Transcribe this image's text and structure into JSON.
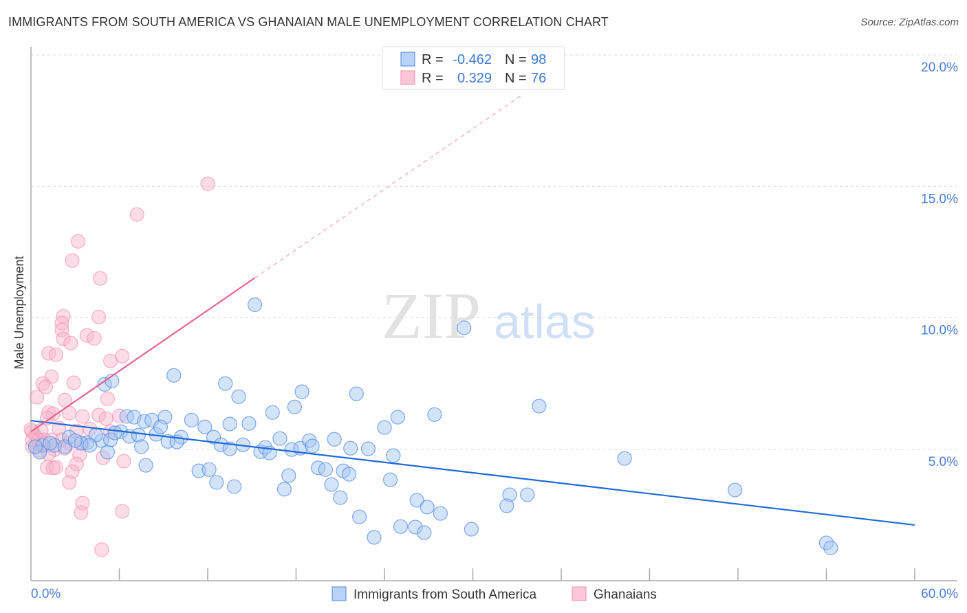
{
  "title": "IMMIGRANTS FROM SOUTH AMERICA VS GHANAIAN MALE UNEMPLOYMENT CORRELATION CHART",
  "source": "Source: ZipAtlas.com",
  "watermark": "ZIPatlas",
  "chart_data": {
    "type": "scatter",
    "title": "IMMIGRANTS FROM SOUTH AMERICA VS GHANAIAN MALE UNEMPLOYMENT CORRELATION CHART",
    "xlabel": "",
    "ylabel": "Male Unemployment",
    "xlim": [
      0,
      60
    ],
    "ylim": [
      0,
      20
    ],
    "x_tick_labels": [
      "0.0%",
      "60.0%"
    ],
    "y_ticks": [
      5,
      10,
      15,
      20
    ],
    "y_tick_labels": [
      "5.0%",
      "10.0%",
      "15.0%",
      "20.0%"
    ],
    "grid": true,
    "legend_position": "bottom",
    "stats": [
      {
        "r_label": "R =",
        "r": "-0.462",
        "n_label": "N =",
        "n": "98"
      },
      {
        "r_label": "R =",
        "r": "0.329",
        "n_label": "N =",
        "n": "76"
      }
    ],
    "series": [
      {
        "name": "Immigrants from South America",
        "color": "#4a86e8",
        "line_color": "#1f6ad8",
        "trend": [
          [
            0,
            6.09
          ],
          [
            60,
            2.12
          ]
        ],
        "points": [
          [
            15.2,
            10.5
          ],
          [
            29.4,
            9.62
          ],
          [
            9.7,
            7.81
          ],
          [
            5.0,
            7.47
          ],
          [
            5.5,
            7.6
          ],
          [
            13.2,
            7.5
          ],
          [
            14.1,
            7.0
          ],
          [
            18.4,
            7.19
          ],
          [
            22.1,
            7.11
          ],
          [
            34.5,
            6.64
          ],
          [
            16.4,
            6.4
          ],
          [
            17.9,
            6.61
          ],
          [
            24.9,
            6.22
          ],
          [
            27.4,
            6.32
          ],
          [
            6.5,
            6.25
          ],
          [
            7.0,
            6.22
          ],
          [
            7.7,
            6.06
          ],
          [
            8.2,
            6.11
          ],
          [
            9.1,
            6.22
          ],
          [
            10.9,
            6.11
          ],
          [
            11.8,
            5.85
          ],
          [
            13.5,
            5.96
          ],
          [
            14.8,
            5.98
          ],
          [
            24.0,
            5.83
          ],
          [
            6.1,
            5.67
          ],
          [
            6.7,
            5.49
          ],
          [
            7.3,
            5.54
          ],
          [
            8.5,
            5.57
          ],
          [
            8.8,
            5.85
          ],
          [
            10.2,
            5.46
          ],
          [
            9.3,
            5.3
          ],
          [
            9.9,
            5.28
          ],
          [
            12.4,
            5.46
          ],
          [
            12.9,
            5.17
          ],
          [
            13.5,
            5.02
          ],
          [
            14.4,
            5.17
          ],
          [
            15.6,
            4.91
          ],
          [
            15.9,
            5.07
          ],
          [
            16.2,
            4.86
          ],
          [
            16.9,
            5.41
          ],
          [
            17.7,
            4.99
          ],
          [
            18.3,
            5.04
          ],
          [
            18.9,
            5.33
          ],
          [
            19.1,
            5.12
          ],
          [
            20.6,
            5.38
          ],
          [
            21.7,
            5.04
          ],
          [
            22.9,
            5.02
          ],
          [
            24.6,
            4.76
          ],
          [
            40.3,
            4.65
          ],
          [
            4.8,
            5.33
          ],
          [
            5.2,
            4.89
          ],
          [
            3.8,
            5.25
          ],
          [
            3.4,
            5.23
          ],
          [
            2.6,
            5.46
          ],
          [
            1.6,
            5.15
          ],
          [
            0.8,
            5.15
          ],
          [
            0.6,
            4.89
          ],
          [
            7.8,
            4.39
          ],
          [
            11.4,
            4.18
          ],
          [
            12.1,
            4.23
          ],
          [
            17.5,
            4.0
          ],
          [
            19.5,
            4.29
          ],
          [
            20.0,
            4.23
          ],
          [
            21.2,
            4.18
          ],
          [
            21.6,
            4.05
          ],
          [
            24.4,
            3.84
          ],
          [
            20.4,
            3.66
          ],
          [
            12.6,
            3.74
          ],
          [
            13.8,
            3.58
          ],
          [
            17.2,
            3.48
          ],
          [
            21.0,
            3.16
          ],
          [
            26.2,
            3.06
          ],
          [
            26.9,
            2.8
          ],
          [
            27.8,
            2.56
          ],
          [
            32.5,
            3.27
          ],
          [
            33.7,
            3.27
          ],
          [
            32.3,
            2.85
          ],
          [
            47.8,
            3.45
          ],
          [
            22.3,
            2.43
          ],
          [
            25.1,
            2.06
          ],
          [
            26.1,
            2.04
          ],
          [
            26.7,
            1.83
          ],
          [
            29.9,
            1.96
          ],
          [
            23.3,
            1.65
          ],
          [
            54.0,
            1.44
          ],
          [
            54.3,
            1.25
          ],
          [
            4.4,
            5.54
          ],
          [
            5.4,
            5.36
          ],
          [
            2.3,
            5.1
          ],
          [
            1.3,
            5.23
          ],
          [
            0.3,
            5.1
          ],
          [
            5.7,
            5.62
          ],
          [
            3.0,
            5.33
          ],
          [
            4.0,
            5.15
          ],
          [
            7.5,
            5.1
          ]
        ]
      },
      {
        "name": "Ghanaians",
        "color": "#f48fb1",
        "line_color": "#e8618f",
        "trend": [
          [
            0,
            5.67
          ],
          [
            15.2,
            11.52
          ]
        ],
        "trend_dashed": [
          [
            15.2,
            11.52
          ],
          [
            33.4,
            18.5
          ]
        ],
        "points": [
          [
            12.0,
            15.1
          ],
          [
            7.2,
            13.93
          ],
          [
            3.2,
            12.91
          ],
          [
            2.8,
            12.18
          ],
          [
            4.7,
            11.5
          ],
          [
            2.2,
            10.06
          ],
          [
            4.6,
            10.03
          ],
          [
            2.1,
            9.8
          ],
          [
            2.1,
            9.54
          ],
          [
            2.2,
            9.2
          ],
          [
            3.8,
            9.33
          ],
          [
            4.3,
            9.22
          ],
          [
            2.7,
            9.04
          ],
          [
            1.2,
            8.65
          ],
          [
            1.7,
            8.6
          ],
          [
            5.4,
            8.36
          ],
          [
            6.2,
            8.54
          ],
          [
            1.4,
            7.76
          ],
          [
            0.8,
            7.5
          ],
          [
            1.0,
            7.37
          ],
          [
            2.9,
            7.53
          ],
          [
            0.4,
            6.98
          ],
          [
            2.3,
            6.87
          ],
          [
            5.2,
            6.92
          ],
          [
            1.2,
            6.4
          ],
          [
            1.5,
            6.35
          ],
          [
            2.6,
            6.38
          ],
          [
            4.6,
            6.3
          ],
          [
            6.0,
            6.27
          ],
          [
            1.1,
            6.19
          ],
          [
            3.5,
            6.25
          ],
          [
            5.1,
            6.17
          ],
          [
            1.9,
            5.8
          ],
          [
            4.0,
            5.77
          ],
          [
            0.7,
            5.72
          ],
          [
            3.1,
            5.7
          ],
          [
            5.4,
            5.67
          ],
          [
            0.1,
            5.67
          ],
          [
            0.3,
            5.49
          ],
          [
            2.1,
            5.36
          ],
          [
            2.6,
            5.23
          ],
          [
            0.5,
            5.23
          ],
          [
            0.9,
            5.36
          ],
          [
            0.1,
            5.1
          ],
          [
            0.6,
            4.96
          ],
          [
            1.6,
            4.99
          ],
          [
            1.2,
            4.83
          ],
          [
            2.3,
            5.04
          ],
          [
            3.3,
            4.78
          ],
          [
            4.9,
            4.68
          ],
          [
            6.3,
            4.55
          ],
          [
            1.1,
            4.31
          ],
          [
            1.5,
            4.29
          ],
          [
            1.7,
            4.31
          ],
          [
            3.1,
            4.44
          ],
          [
            2.8,
            4.15
          ],
          [
            2.6,
            3.74
          ],
          [
            3.5,
            2.95
          ],
          [
            3.4,
            2.59
          ],
          [
            6.2,
            2.64
          ],
          [
            4.8,
            1.18
          ],
          [
            0.5,
            5.36
          ],
          [
            0.7,
            5.15
          ],
          [
            0.0,
            5.75
          ],
          [
            0.1,
            5.36
          ],
          [
            1.4,
            5.36
          ],
          [
            3.5,
            5.23
          ]
        ]
      }
    ]
  }
}
